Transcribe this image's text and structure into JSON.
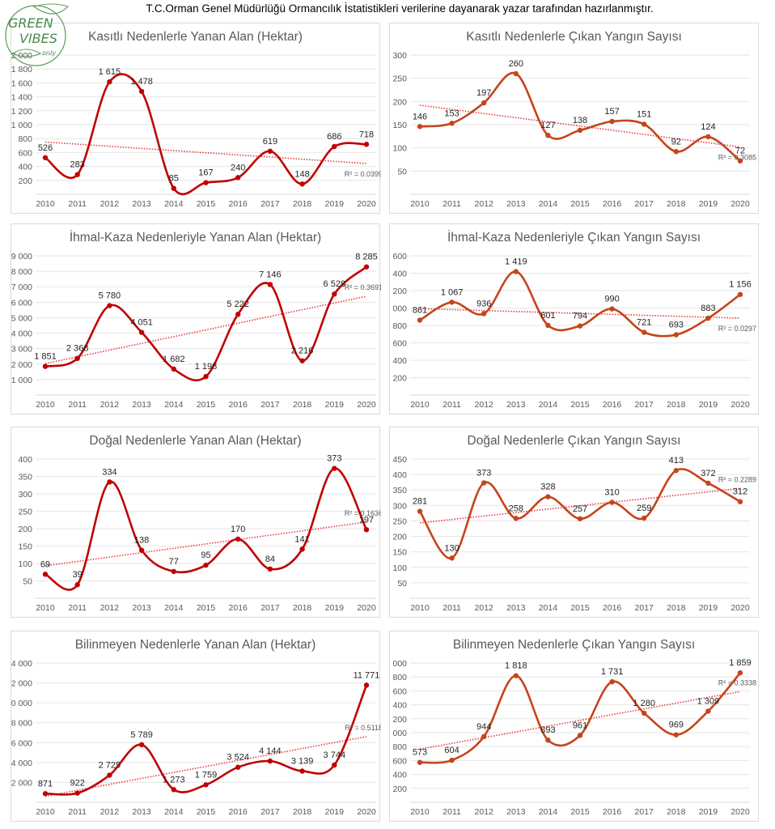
{
  "header": {
    "text": "T.C.Orman Genel Müdürlüğü Ormancılık İstatistikleri verilerine dayanarak yazar tarafından hazırlanmıştır."
  },
  "logo": {
    "text": "GREEN VIBES only"
  },
  "colors": {
    "left_series": "#c00000",
    "right_series": "#c5441a",
    "trendline": "#e8383d"
  },
  "chart_data": [
    {
      "type": "line",
      "title": "Kasıtlı Nedenlerle Yanan Alan (Hektar)",
      "categories": [
        "2010",
        "2011",
        "2012",
        "2013",
        "2014",
        "2015",
        "2016",
        "2017",
        "2018",
        "2019",
        "2020"
      ],
      "values": [
        526,
        283,
        1615,
        1478,
        85,
        167,
        240,
        619,
        148,
        686,
        718
      ],
      "yticks": [
        200,
        400,
        600,
        800,
        1000,
        1200,
        1400,
        1600,
        1800,
        2000
      ],
      "ylim": [
        0,
        2000
      ],
      "trendline": "linear",
      "r2": "R² = 0.0399",
      "grid": true,
      "legend": "none"
    },
    {
      "type": "line",
      "title": "Kasıtlı Nedenlerle Çıkan Yangın Sayısı",
      "categories": [
        "2010",
        "2011",
        "2012",
        "2013",
        "2014",
        "2015",
        "2016",
        "2017",
        "2018",
        "2019",
        "2020"
      ],
      "values": [
        146,
        153,
        197,
        260,
        127,
        138,
        157,
        151,
        92,
        124,
        72
      ],
      "yticks": [
        50,
        100,
        150,
        200,
        250,
        300
      ],
      "ylim": [
        0,
        300
      ],
      "trendline": "linear",
      "r2": "R² = 0.3085",
      "grid": true,
      "legend": "none"
    },
    {
      "type": "line",
      "title": "İhmal-Kaza Nedenleriyle Yanan Alan (Hektar)",
      "categories": [
        "2010",
        "2011",
        "2012",
        "2013",
        "2014",
        "2015",
        "2016",
        "2017",
        "2018",
        "2019",
        "2020"
      ],
      "values": [
        1851,
        2368,
        5780,
        4051,
        1682,
        1198,
        5222,
        7146,
        2216,
        6529,
        8285
      ],
      "yticks": [
        1000,
        2000,
        3000,
        4000,
        5000,
        6000,
        7000,
        8000,
        9000
      ],
      "ylim": [
        0,
        9000
      ],
      "trendline": "linear",
      "r2": "R² = 0.3691",
      "grid": true,
      "legend": "none"
    },
    {
      "type": "line",
      "title": "İhmal-Kaza Nedenleriyle Çıkan Yangın Sayısı",
      "categories": [
        "2010",
        "2011",
        "2012",
        "2013",
        "2014",
        "2015",
        "2016",
        "2017",
        "2018",
        "2019",
        "2020"
      ],
      "values": [
        861,
        1067,
        936,
        1419,
        801,
        794,
        990,
        721,
        693,
        883,
        1156
      ],
      "yticks": [
        200,
        400,
        600,
        800,
        1000,
        1200,
        1400,
        1600
      ],
      "ylim": [
        0,
        1600
      ],
      "trendline": "linear",
      "r2": "R² = 0.0297",
      "grid": true,
      "legend": "none"
    },
    {
      "type": "line",
      "title": "Doğal Nedenlerle Yanan Alan (Hektar)",
      "categories": [
        "2010",
        "2011",
        "2012",
        "2013",
        "2014",
        "2015",
        "2016",
        "2017",
        "2018",
        "2019",
        "2020"
      ],
      "values": [
        69,
        39,
        334,
        138,
        77,
        95,
        170,
        84,
        141,
        373,
        197
      ],
      "yticks": [
        50,
        100,
        150,
        200,
        250,
        300,
        350,
        400
      ],
      "ylim": [
        0,
        400
      ],
      "trendline": "linear",
      "r2": "R² = 0.1636",
      "grid": true,
      "legend": "none"
    },
    {
      "type": "line",
      "title": "Doğal Nedenlerle Çıkan Yangın Sayısı",
      "categories": [
        "2010",
        "2011",
        "2012",
        "2013",
        "2014",
        "2015",
        "2016",
        "2017",
        "2018",
        "2019",
        "2020"
      ],
      "values": [
        281,
        130,
        373,
        258,
        328,
        257,
        310,
        259,
        413,
        372,
        312
      ],
      "yticks": [
        50,
        100,
        150,
        200,
        250,
        300,
        350,
        400,
        450
      ],
      "ylim": [
        0,
        450
      ],
      "trendline": "linear",
      "r2": "R² = 0.2289",
      "grid": true,
      "legend": "none"
    },
    {
      "type": "line",
      "title": "Bilinmeyen Nedenlerle  Yanan Alan (Hektar)",
      "categories": [
        "2010",
        "2011",
        "2012",
        "2013",
        "2014",
        "2015",
        "2016",
        "2017",
        "2018",
        "2019",
        "2020"
      ],
      "values": [
        871,
        922,
        2725,
        5789,
        1273,
        1759,
        3524,
        4144,
        3139,
        3744,
        11771
      ],
      "yticks": [
        2000,
        4000,
        6000,
        8000,
        10000,
        12000,
        14000
      ],
      "ylim": [
        0,
        14000
      ],
      "trendline": "linear",
      "r2": "R² = 0.5118",
      "grid": true,
      "legend": "none"
    },
    {
      "type": "line",
      "title": "Bilinmeyen Nedenlerle  Çıkan Yangın Sayısı",
      "categories": [
        "2010",
        "2011",
        "2012",
        "2013",
        "2014",
        "2015",
        "2016",
        "2017",
        "2018",
        "2019",
        "2020"
      ],
      "values": [
        573,
        604,
        944,
        1818,
        893,
        961,
        1731,
        1280,
        969,
        1309,
        1859
      ],
      "yticks": [
        200,
        400,
        600,
        800,
        1000,
        1200,
        1400,
        1600,
        1800,
        2000
      ],
      "ylim": [
        0,
        2000
      ],
      "trendline": "linear",
      "r2": "R² = 0.3338",
      "grid": true,
      "legend": "none"
    }
  ]
}
